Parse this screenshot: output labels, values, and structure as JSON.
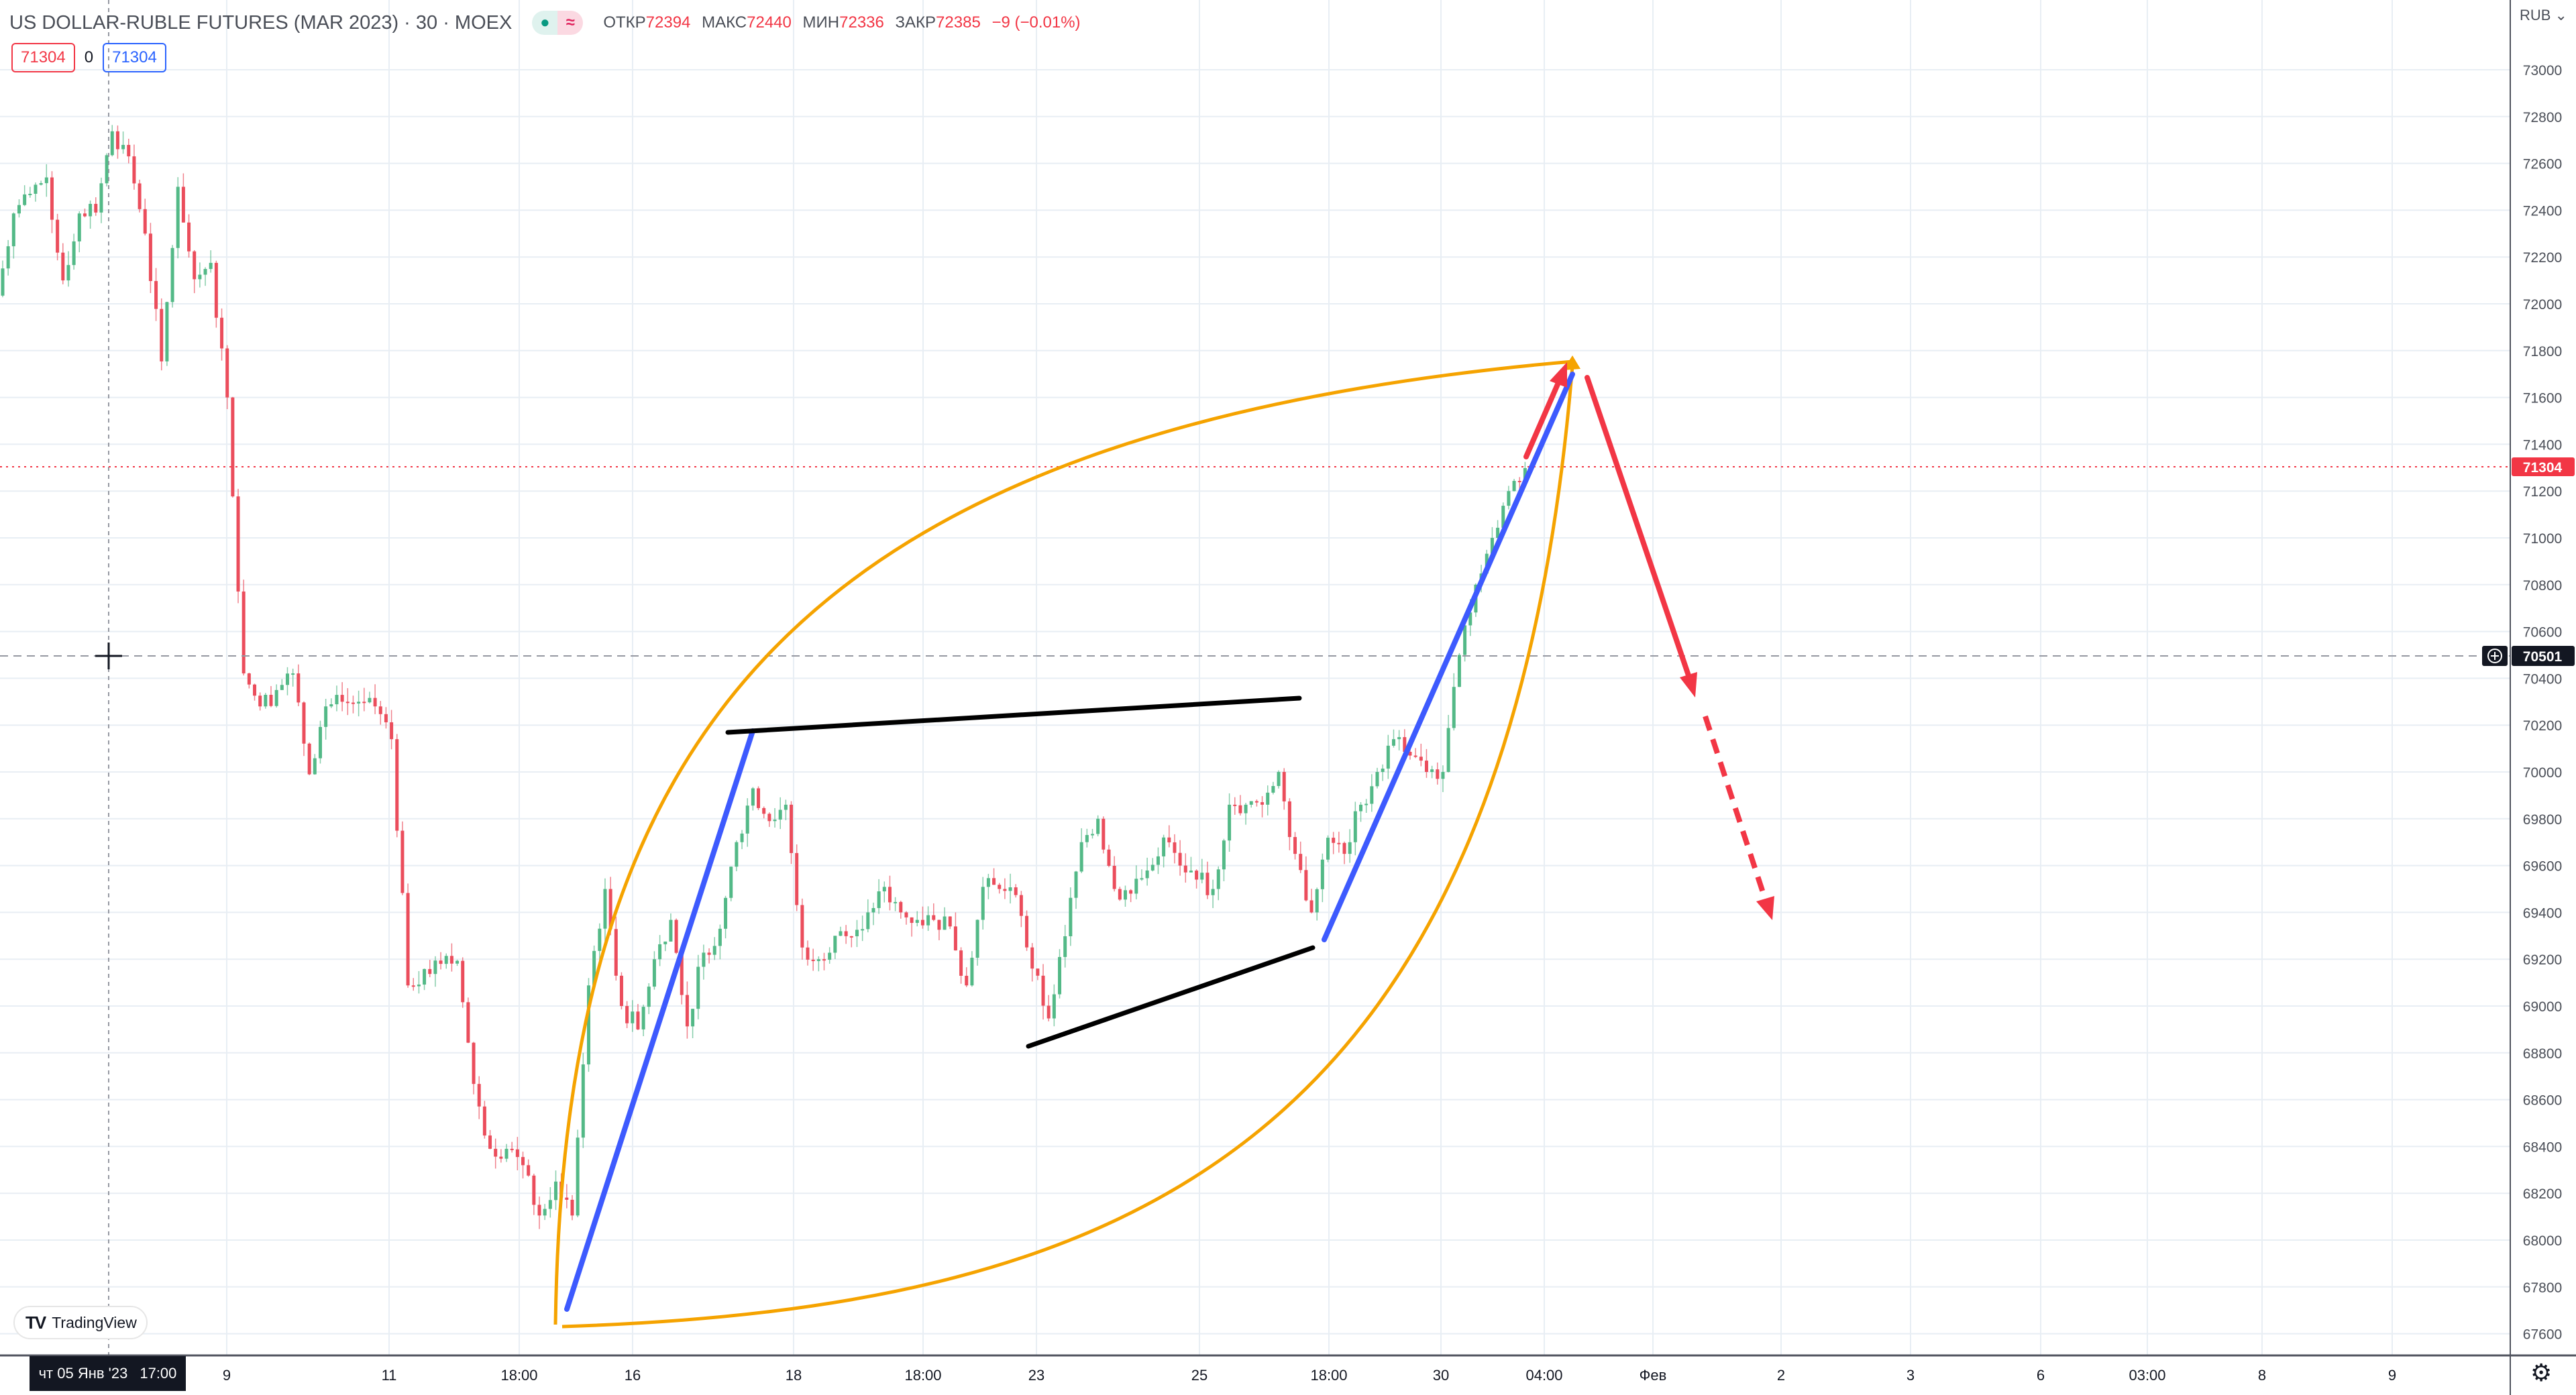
{
  "header": {
    "title": "US DOLLAR-RUBLE FUTURES (MAR 2023) · 30 · MOEX",
    "market_status_icon": "market-open-dot",
    "delay_icon": "approx-icon",
    "open_label": "ОТКР",
    "open": "72394",
    "high_label": "МАКС",
    "high": "72440",
    "low_label": "МИН",
    "low": "72336",
    "close_label": "ЗАКР",
    "close": "72385",
    "change": "−9 (−0.01%)",
    "sell_price": "71304",
    "spread": "0",
    "buy_price": "71304"
  },
  "price_axis": {
    "currency": "RUB ⌄",
    "ticks": [
      "73000",
      "72800",
      "72600",
      "72400",
      "72200",
      "72000",
      "71800",
      "71600",
      "71400",
      "71200",
      "71000",
      "70800",
      "70600",
      "70400",
      "70200",
      "70000",
      "69800",
      "69600",
      "69400",
      "69200",
      "69000",
      "68800",
      "68600",
      "68400",
      "68200",
      "68000",
      "67800",
      "67600"
    ],
    "last_price": "71304",
    "crosshair_price": "70501"
  },
  "time_axis": {
    "crosshair_label_day": "чт 05 Янв '23",
    "crosshair_label_time": "17:00",
    "labels": [
      "9",
      "11",
      "18:00",
      "16",
      "18",
      "18:00",
      "23",
      "25",
      "18:00",
      "30",
      "04:00",
      "Фев",
      "2",
      "3",
      "6",
      "03:00",
      "8",
      "9"
    ]
  },
  "branding": {
    "logo_text": "TradingView"
  },
  "colors": {
    "up": "#53b987",
    "down": "#eb4d5c",
    "last_price": "#f23645",
    "trend_blue": "#3d5afe",
    "curve_orange": "#f5a300",
    "arrow_red": "#f23645"
  },
  "chart_data": {
    "type": "candlestick",
    "symbol": "US DOLLAR-RUBLE FUTURES (MAR 2023)",
    "interval": "30",
    "ylim": [
      67550,
      73150
    ],
    "approx_closes": [
      72035,
      72386,
      72470,
      72540,
      72100,
      72386,
      72390,
      72737,
      72630,
      72300,
      71754,
      72500,
      72105,
      72175,
      71600,
      70421,
      70280,
      70350,
      70421,
      69990,
      70280,
      70300,
      70300,
      70280,
      70140,
      69088,
      69158,
      69180,
      69193,
      68667,
      68390,
      68390,
      68320,
      68105,
      68250,
      68105,
      69088,
      69500,
      69000,
      68900,
      69200,
      69368,
      68913,
      69228,
      69330,
      69700,
      69930,
      69790,
      69860,
      69250,
      69200,
      69300,
      69298,
      69400,
      69509,
      69400,
      69368,
      69368,
      69340,
      69088,
      69509,
      69500,
      69474,
      69160,
      68947,
      69298,
      69700,
      69800,
      69500,
      69480,
      69579,
      69720,
      69600,
      69540,
      69500,
      69860,
      69860,
      69860,
      70000,
      69650,
      69400,
      69719,
      69650,
      69860,
      70000,
      70140,
      70070,
      70000,
      70000,
      70500,
      70800,
      71000,
      71200,
      71298
    ]
  }
}
